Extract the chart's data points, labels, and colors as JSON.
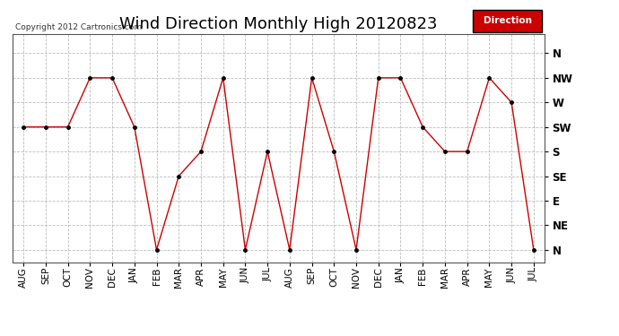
{
  "title": "Wind Direction Monthly High 20120823",
  "copyright": "Copyright 2012 Cartronics.com",
  "legend_label": "Direction",
  "legend_color": "#cc0000",
  "legend_text_color": "#ffffff",
  "line_color": "#cc0000",
  "marker_color": "#000000",
  "bg_color": "#ffffff",
  "plot_bg_color": "#ffffff",
  "grid_color": "#aaaaaa",
  "x_labels": [
    "AUG",
    "SEP",
    "OCT",
    "NOV",
    "DEC",
    "JAN",
    "FEB",
    "MAR",
    "APR",
    "MAY",
    "JUN",
    "JUL",
    "AUG",
    "SEP",
    "OCT",
    "NOV",
    "DEC",
    "JAN",
    "FEB",
    "MAR",
    "APR",
    "MAY",
    "JUN",
    "JUL"
  ],
  "y_labels": [
    "N",
    "NE",
    "E",
    "SE",
    "S",
    "SW",
    "W",
    "NW",
    "N"
  ],
  "y_values": [
    0,
    1,
    2,
    3,
    4,
    5,
    6,
    7,
    8
  ],
  "data_values": [
    5,
    5,
    5,
    7,
    7,
    5,
    0,
    3,
    4,
    7,
    0,
    4,
    0,
    7,
    4,
    0,
    7,
    7,
    5,
    4,
    4,
    7,
    6,
    0
  ],
  "title_fontsize": 13,
  "tick_fontsize": 7.5,
  "ylim": [
    -0.5,
    8.8
  ]
}
